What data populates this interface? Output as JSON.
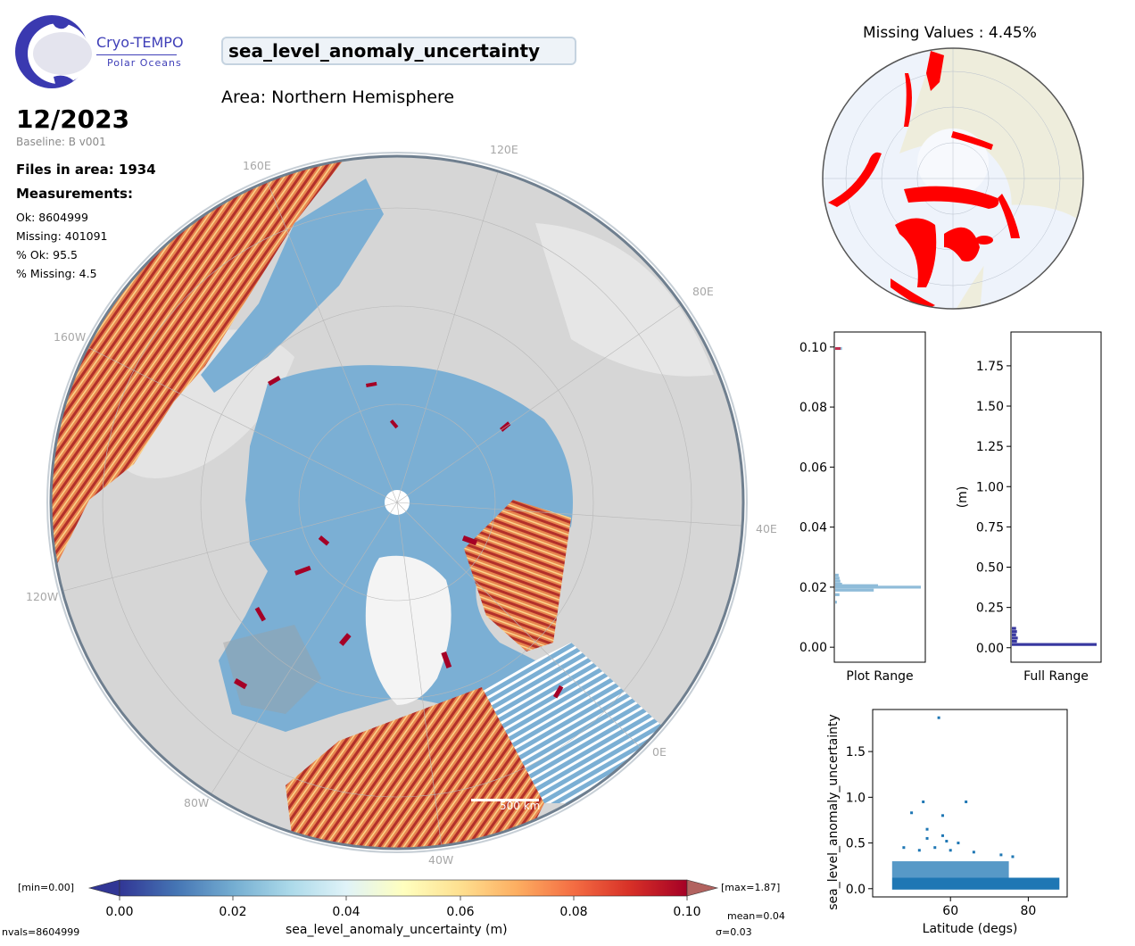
{
  "header": {
    "logo_title": "Cryo-TEMPO",
    "logo_subtitle": "Polar Oceans",
    "parameter": "sea_level_anomaly_uncertainty",
    "area": "Area: Northern Hemisphere",
    "date": "12/2023",
    "baseline": "Baseline: B v001",
    "files_in_area": "Files in area: 1934",
    "measurements_heading": "Measurements:",
    "ok": "Ok: 8604999",
    "missing": "Missing: 401091",
    "pct_ok": "% Ok: 95.5",
    "pct_missing": "% Missing: 4.5"
  },
  "map": {
    "lon_labels": [
      "120E",
      "160E",
      "80E",
      "160W",
      "40E",
      "120W",
      "0E",
      "80W",
      "40W"
    ],
    "scale_bar": "500 km"
  },
  "missing_map": {
    "title": "Missing Values : 4.45%"
  },
  "colors": {
    "accent": "#3f3fb8",
    "open_ocean": "#7bafd4",
    "high_uncertainty": "#a50026",
    "missing": "#ff0000",
    "scatter": "#1f77b4"
  },
  "colorbar": {
    "min_label": "[min=0.00]",
    "max_label": "[max=1.87]",
    "ticks": [
      "0.00",
      "0.02",
      "0.04",
      "0.06",
      "0.08",
      "0.10"
    ],
    "label": "sea_level_anomaly_uncertainty (m)",
    "mean": "mean=0.04",
    "sigma": "σ=0.03",
    "nvals": "nvals=8604999"
  },
  "chart_data": [
    {
      "type": "bar",
      "orientation": "horizontal",
      "name": "hist-plot-range",
      "xlabel": "Plot Range",
      "ylabel": "",
      "ylim": [
        -0.005,
        0.105
      ],
      "yticks": [
        "0.00",
        "0.02",
        "0.04",
        "0.06",
        "0.08",
        "0.10"
      ],
      "bins": [
        0.015,
        0.0175,
        0.019,
        0.02,
        0.0205,
        0.021,
        0.022,
        0.023,
        0.024,
        0.0995
      ],
      "counts": [
        0.02,
        0.05,
        0.45,
        1.0,
        0.5,
        0.08,
        0.06,
        0.05,
        0.04,
        0.08
      ]
    },
    {
      "type": "bar",
      "orientation": "horizontal",
      "name": "hist-full-range",
      "xlabel": "Full Range",
      "ylabel": "(m)",
      "ylim": [
        -0.09,
        1.96
      ],
      "yticks": [
        "0.00",
        "0.25",
        "0.50",
        "0.75",
        "1.00",
        "1.25",
        "1.50",
        "1.75"
      ],
      "bins": [
        0.02,
        0.04,
        0.06,
        0.08,
        0.1,
        0.12
      ],
      "counts": [
        1.0,
        0.06,
        0.07,
        0.05,
        0.06,
        0.05
      ]
    },
    {
      "type": "scatter",
      "name": "scatter-latitude",
      "xlabel": "Latitude (degs)",
      "ylabel": "sea_level_anomaly_uncertainty",
      "xlim": [
        40,
        90
      ],
      "ylim": [
        -0.09,
        1.96
      ],
      "xticks": [
        "60",
        "80"
      ],
      "yticks": [
        "0.0",
        "0.5",
        "1.0",
        "1.5"
      ],
      "points": [
        [
          57,
          1.87
        ],
        [
          50,
          0.83
        ],
        [
          53,
          0.95
        ],
        [
          58,
          0.8
        ],
        [
          64,
          0.95
        ],
        [
          54,
          0.65
        ],
        [
          58,
          0.58
        ],
        [
          54,
          0.55
        ],
        [
          59,
          0.52
        ],
        [
          62,
          0.5
        ],
        [
          48,
          0.45
        ],
        [
          56,
          0.45
        ],
        [
          66,
          0.4
        ],
        [
          73,
          0.37
        ],
        [
          76,
          0.35
        ],
        [
          52,
          0.42
        ],
        [
          60,
          0.42
        ]
      ]
    }
  ]
}
